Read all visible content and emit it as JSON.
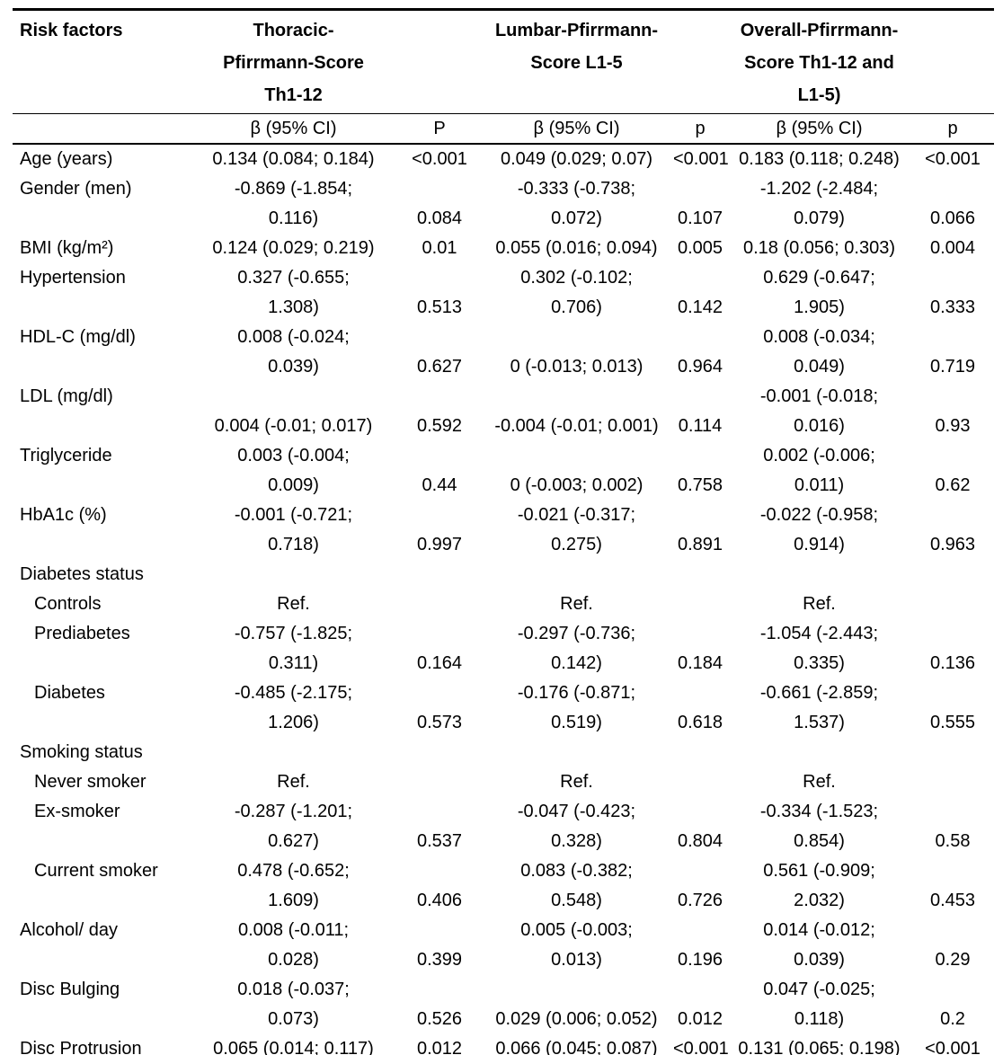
{
  "table": {
    "columns": {
      "risk_factors": "Risk factors",
      "thoracic": "Thoracic-\nPfirrmann-Score\nTh1-12",
      "lumbar": "Lumbar-Pfirrmann-\nScore L1-5",
      "overall": "Overall-Pfirrmann-\nScore Th1-12 and\nL1-5)"
    },
    "subheaders": {
      "beta_ci": "β (95% CI)",
      "p_thoracic": "P",
      "p_lumbar": "p",
      "p_overall": "p"
    },
    "rows": [
      {
        "label": "Age (years)",
        "indent": false,
        "group": false,
        "cells": [
          "0.134 (0.084; 0.184)",
          "<0.001",
          "0.049 (0.029; 0.07)",
          "<0.001",
          "0.183 (0.118; 0.248)",
          "<0.001"
        ]
      },
      {
        "label": "Gender (men)",
        "indent": false,
        "group": false,
        "cells": [
          "-0.869 (-1.854;\n0.116)",
          "0.084",
          "-0.333 (-0.738;\n0.072)",
          "0.107",
          "-1.202 (-2.484;\n0.079)",
          "0.066"
        ]
      },
      {
        "label": "BMI (kg/m²)",
        "indent": false,
        "group": false,
        "cells": [
          "0.124 (0.029; 0.219)",
          "0.01",
          "0.055 (0.016; 0.094)",
          "0.005",
          "0.18 (0.056; 0.303)",
          "0.004"
        ]
      },
      {
        "label": "Hypertension",
        "indent": false,
        "group": false,
        "cells": [
          "0.327 (-0.655;\n1.308)",
          "0.513",
          "0.302 (-0.102;\n0.706)",
          "0.142",
          "0.629 (-0.647;\n1.905)",
          "0.333"
        ]
      },
      {
        "label": "HDL-C (mg/dl)",
        "indent": false,
        "group": false,
        "cells": [
          "0.008 (-0.024;\n0.039)",
          "0.627",
          "0 (-0.013; 0.013)",
          "0.964",
          "0.008 (-0.034;\n0.049)",
          "0.719"
        ]
      },
      {
        "label": "LDL (mg/dl)",
        "indent": false,
        "group": false,
        "cells": [
          "0.004 (-0.01; 0.017)",
          "0.592",
          "-0.004 (-0.01; 0.001)",
          "0.114",
          "-0.001 (-0.018;\n0.016)",
          "0.93"
        ]
      },
      {
        "label": "Triglyceride",
        "indent": false,
        "group": false,
        "cells": [
          "0.003 (-0.004;\n0.009)",
          "0.44",
          "0 (-0.003; 0.002)",
          "0.758",
          "0.002 (-0.006;\n0.011)",
          "0.62"
        ]
      },
      {
        "label": "HbA1c (%)",
        "indent": false,
        "group": false,
        "cells": [
          "-0.001 (-0.721;\n0.718)",
          "0.997",
          "-0.021 (-0.317;\n0.275)",
          "0.891",
          "-0.022 (-0.958;\n0.914)",
          "0.963"
        ]
      },
      {
        "label": "Diabetes status",
        "indent": false,
        "group": true,
        "cells": [
          "",
          "",
          "",
          "",
          "",
          ""
        ]
      },
      {
        "label": "Controls",
        "indent": true,
        "group": false,
        "cells": [
          "Ref.",
          "",
          "Ref.",
          "",
          "Ref.",
          ""
        ]
      },
      {
        "label": "Prediabetes",
        "indent": true,
        "group": false,
        "cells": [
          "-0.757 (-1.825;\n0.311)",
          "0.164",
          "-0.297 (-0.736;\n0.142)",
          "0.184",
          "-1.054 (-2.443;\n0.335)",
          "0.136"
        ]
      },
      {
        "label": "Diabetes",
        "indent": true,
        "group": false,
        "cells": [
          "-0.485 (-2.175;\n1.206)",
          "0.573",
          "-0.176 (-0.871;\n0.519)",
          "0.618",
          "-0.661 (-2.859;\n1.537)",
          "0.555"
        ]
      },
      {
        "label": "Smoking status",
        "indent": false,
        "group": true,
        "cells": [
          "",
          "",
          "",
          "",
          "",
          ""
        ]
      },
      {
        "label": "Never smoker",
        "indent": true,
        "group": false,
        "cells": [
          "Ref.",
          "",
          "Ref.",
          "",
          "Ref.",
          ""
        ]
      },
      {
        "label": "Ex-smoker",
        "indent": true,
        "group": false,
        "cells": [
          "-0.287 (-1.201;\n0.627)",
          "0.537",
          "-0.047 (-0.423;\n0.328)",
          "0.804",
          "-0.334 (-1.523;\n0.854)",
          "0.58"
        ]
      },
      {
        "label": "Current smoker",
        "indent": true,
        "group": false,
        "cells": [
          "0.478 (-0.652;\n1.609)",
          "0.406",
          "0.083 (-0.382;\n0.548)",
          "0.726",
          "0.561 (-0.909;\n2.032)",
          "0.453"
        ]
      },
      {
        "label": "Alcohol/ day",
        "indent": false,
        "group": false,
        "cells": [
          "0.008 (-0.011;\n0.028)",
          "0.399",
          "0.005 (-0.003;\n0.013)",
          "0.196",
          "0.014 (-0.012;\n0.039)",
          "0.29"
        ]
      },
      {
        "label": "Disc Bulging",
        "indent": false,
        "group": false,
        "cells": [
          "0.018 (-0.037;\n0.073)",
          "0.526",
          "0.029 (0.006; 0.052)",
          "0.012",
          "0.047 (-0.025;\n0.118)",
          "0.2"
        ]
      },
      {
        "label": "Disc Protrusion",
        "indent": false,
        "group": false,
        "cells": [
          "0.065 (0.014; 0.117)",
          "0.012",
          "0.066 (0.045; 0.087)",
          "<0.001",
          "0.131 (0.065; 0.198)",
          "<0.001"
        ]
      }
    ]
  }
}
